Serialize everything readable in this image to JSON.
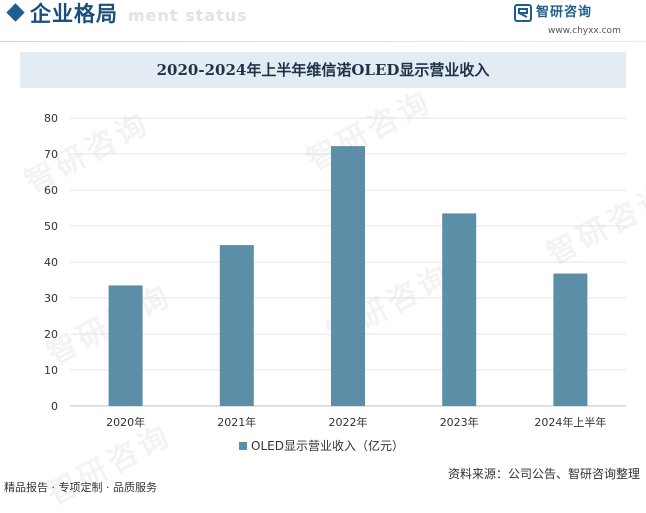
{
  "header": {
    "title": "企业格局",
    "subtitle": "ment status"
  },
  "brand": {
    "name": "智研咨询",
    "url": "www.chyxx.com",
    "watermark": "智研咨询"
  },
  "chart_data": {
    "type": "bar",
    "title": "2020-2024年上半年维信诺OLED显示营业收入",
    "categories": [
      "2020年",
      "2021年",
      "2022年",
      "2023年",
      "2024年上半年"
    ],
    "series": [
      {
        "name": "OLED显示营业收入（亿元）",
        "values": [
          33.5,
          44.7,
          72.2,
          53.5,
          36.8
        ]
      }
    ],
    "ylim": [
      0,
      80
    ],
    "yticks": [
      0,
      10,
      20,
      30,
      40,
      50,
      60,
      70,
      80
    ],
    "grid": true,
    "legend": "bottom",
    "bar_color": "#5c8fa7"
  },
  "footer": {
    "left": "精品报告 · 专项定制 · 品质服务",
    "source": "资料来源：公司公告、智研咨询整理"
  }
}
